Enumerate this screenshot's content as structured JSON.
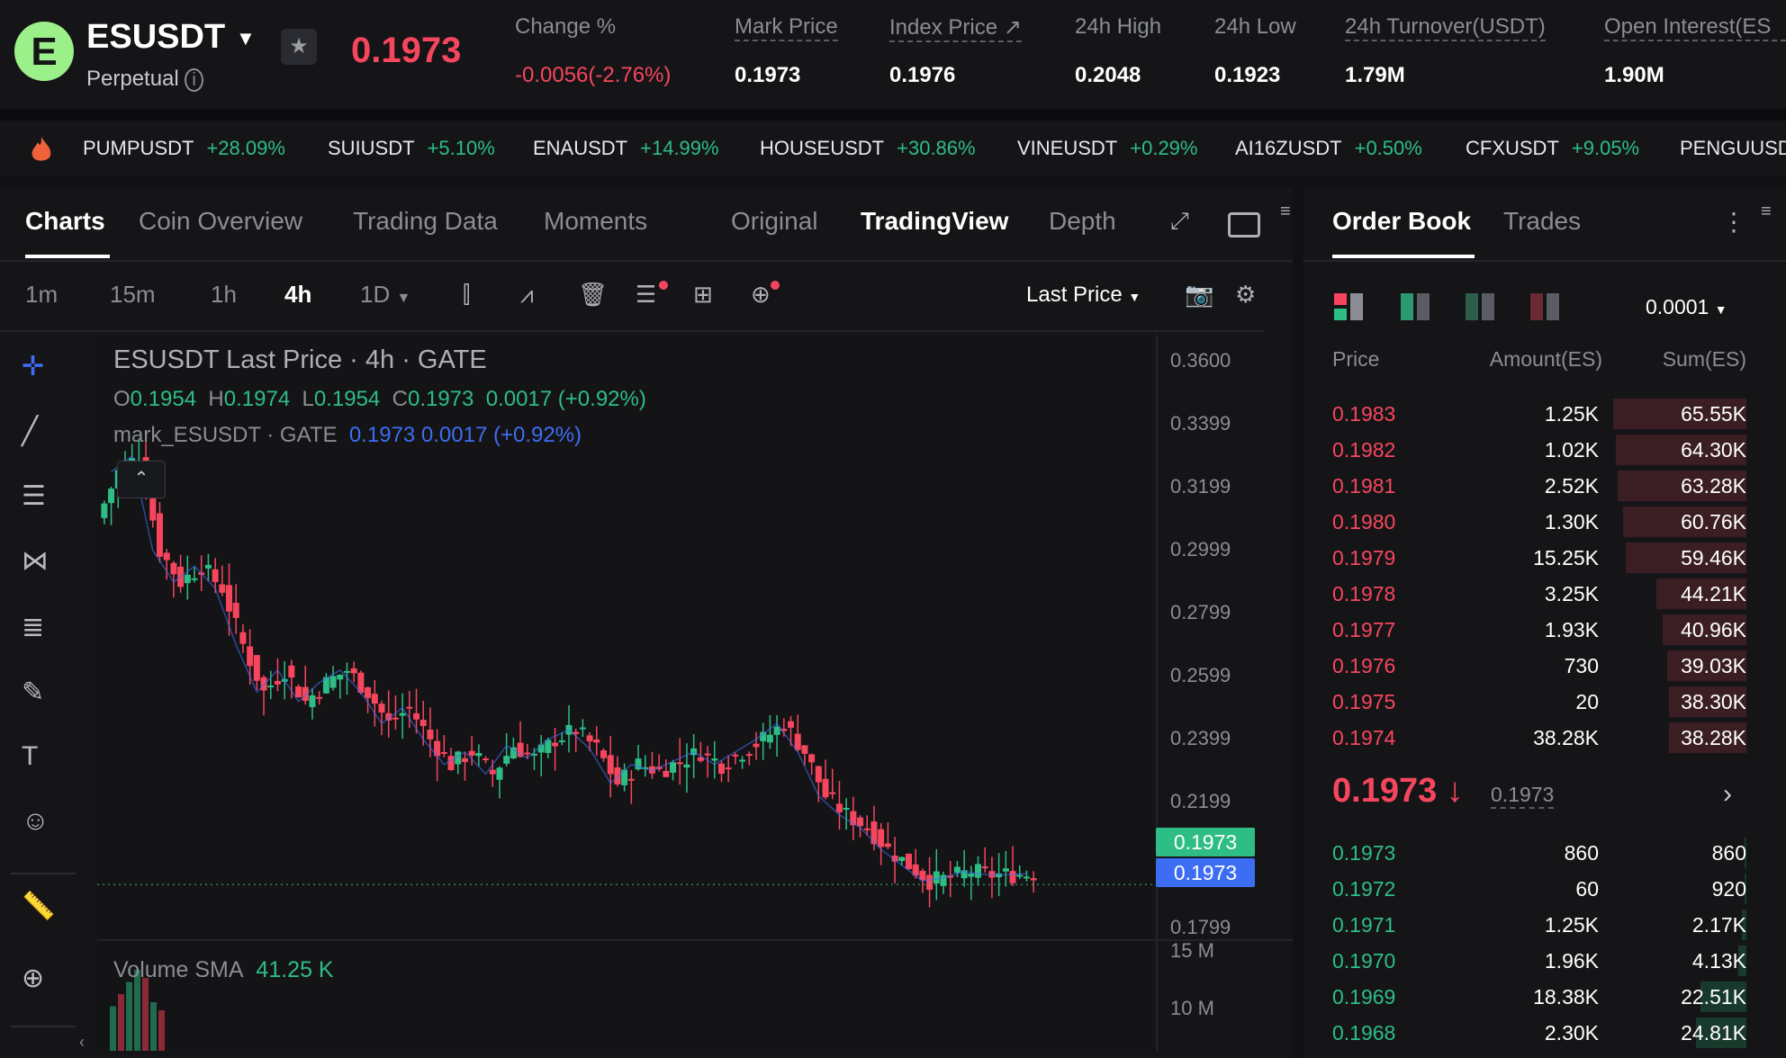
{
  "header": {
    "symbol": "ESUSDT",
    "contract_type": "Perpetual",
    "last_price": "0.1973",
    "stats": [
      {
        "label": "Change %",
        "value": "-0.0056(-2.76%)",
        "color": "#f6465d"
      },
      {
        "label": "Mark Price",
        "value": "0.1973"
      },
      {
        "label": "Index Price",
        "value": "0.1976"
      },
      {
        "label": "24h High",
        "value": "0.2048"
      },
      {
        "label": "24h Low",
        "value": "0.1923"
      },
      {
        "label": "24h Turnover(USDT)",
        "value": "1.79M"
      },
      {
        "label": "Open Interest(ES",
        "value": "1.90M"
      }
    ]
  },
  "ticker": [
    {
      "symbol": "PUMPUSDT",
      "change": "+28.09%"
    },
    {
      "symbol": "SUIUSDT",
      "change": "+5.10%"
    },
    {
      "symbol": "ENAUSDT",
      "change": "+14.99%"
    },
    {
      "symbol": "HOUSEUSDT",
      "change": "+30.86%"
    },
    {
      "symbol": "VINEUSDT",
      "change": "+0.29%"
    },
    {
      "symbol": "AI16ZUSDT",
      "change": "+0.50%"
    },
    {
      "symbol": "CFXUSDT",
      "change": "+9.05%"
    },
    {
      "symbol": "PENGUUSD",
      "change": ""
    }
  ],
  "chart_tabs": [
    "Charts",
    "Coin Overview",
    "Trading Data",
    "Moments"
  ],
  "view_tabs": [
    "Original",
    "TradingView",
    "Depth"
  ],
  "timeframes": [
    "1m",
    "15m",
    "1h",
    "4h",
    "1D"
  ],
  "price_type": "Last Price",
  "legend": {
    "title": "ESUSDT Last Price · 4h · GATE",
    "o_label": "O",
    "o": "0.1954",
    "h_label": "H",
    "h": "0.1974",
    "l_label": "L",
    "l": "0.1954",
    "c_label": "C",
    "c": "0.1973",
    "change": "0.0017 (+0.92%)",
    "mark_label": "mark_ESUSDT · GATE",
    "mark_value": "0.1973",
    "mark_change": "0.0017 (+0.92%)"
  },
  "volume_label": "Volume SMA",
  "volume_value": "41.25 K",
  "price_axis": [
    "0.3600",
    "0.3399",
    "0.3199",
    "0.2999",
    "0.2799",
    "0.2599",
    "0.2399",
    "0.2199",
    "0.1799"
  ],
  "volume_axis": [
    "15 M",
    "10 M"
  ],
  "price_tag_last": "0.1973",
  "price_tag_mark": "0.1973",
  "chart_data": {
    "type": "candlestick",
    "ylim": [
      0.1799,
      0.36
    ],
    "close_series": [
      0.325,
      0.33,
      0.3,
      0.29,
      0.295,
      0.288,
      0.27,
      0.255,
      0.262,
      0.252,
      0.258,
      0.262,
      0.255,
      0.245,
      0.25,
      0.24,
      0.232,
      0.236,
      0.229,
      0.238,
      0.234,
      0.24,
      0.243,
      0.237,
      0.226,
      0.232,
      0.23,
      0.233,
      0.236,
      0.232,
      0.236,
      0.24,
      0.245,
      0.236,
      0.222,
      0.216,
      0.212,
      0.205,
      0.2,
      0.195,
      0.196,
      0.198,
      0.197,
      0.197,
      0.1973
    ]
  },
  "orderbook": {
    "tabs": [
      "Order Book",
      "Trades"
    ],
    "precision": "0.0001",
    "headers": [
      "Price",
      "Amount(ES)",
      "Sum(ES)"
    ],
    "asks": [
      {
        "price": "0.1983",
        "amount": "1.25K",
        "sum": "65.55K",
        "depth": 1.0
      },
      {
        "price": "0.1982",
        "amount": "1.02K",
        "sum": "64.30K",
        "depth": 0.98
      },
      {
        "price": "0.1981",
        "amount": "2.52K",
        "sum": "63.28K",
        "depth": 0.965
      },
      {
        "price": "0.1980",
        "amount": "1.30K",
        "sum": "60.76K",
        "depth": 0.927
      },
      {
        "price": "0.1979",
        "amount": "15.25K",
        "sum": "59.46K",
        "depth": 0.907
      },
      {
        "price": "0.1978",
        "amount": "3.25K",
        "sum": "44.21K",
        "depth": 0.674
      },
      {
        "price": "0.1977",
        "amount": "1.93K",
        "sum": "40.96K",
        "depth": 0.625
      },
      {
        "price": "0.1976",
        "amount": "730",
        "sum": "39.03K",
        "depth": 0.595
      },
      {
        "price": "0.1975",
        "amount": "20",
        "sum": "38.30K",
        "depth": 0.584
      },
      {
        "price": "0.1974",
        "amount": "38.28K",
        "sum": "38.28K",
        "depth": 0.584
      }
    ],
    "mid_price": "0.1973",
    "mid_mark": "0.1973",
    "bids": [
      {
        "price": "0.1973",
        "amount": "860",
        "sum": "860",
        "depth": 0.013
      },
      {
        "price": "0.1972",
        "amount": "60",
        "sum": "920",
        "depth": 0.014
      },
      {
        "price": "0.1971",
        "amount": "1.25K",
        "sum": "2.17K",
        "depth": 0.033
      },
      {
        "price": "0.1970",
        "amount": "1.96K",
        "sum": "4.13K",
        "depth": 0.063
      },
      {
        "price": "0.1969",
        "amount": "18.38K",
        "sum": "22.51K",
        "depth": 0.343
      },
      {
        "price": "0.1968",
        "amount": "2.30K",
        "sum": "24.81K",
        "depth": 0.378
      }
    ]
  },
  "colors": {
    "up": "#2ebd85",
    "down": "#f6465d",
    "mark": "#3d6df2",
    "bg": "#111114"
  }
}
